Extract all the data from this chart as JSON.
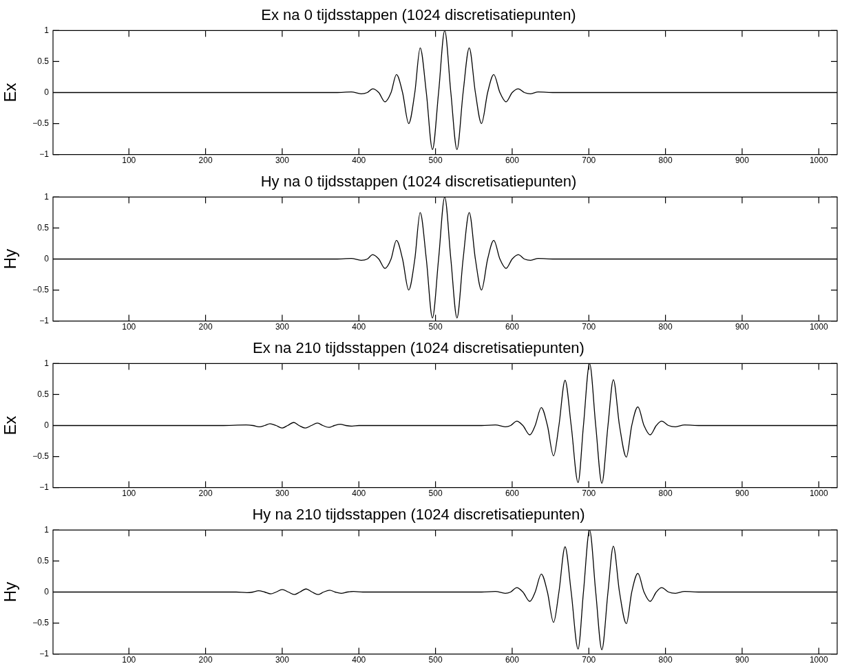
{
  "chart_data": [
    {
      "type": "line",
      "title": "Ex na 0 tijdsstappen (1024 discretisatiepunten)",
      "ylabel": "Ex",
      "xlim": [
        1,
        1024
      ],
      "xticks": [
        100,
        200,
        300,
        400,
        500,
        600,
        700,
        800,
        900,
        1000
      ],
      "ylim": [
        -1,
        1
      ],
      "yticks": [
        -1,
        -0.5,
        0,
        0.5,
        1
      ],
      "line_style": "solid",
      "series": [
        {
          "color": "#000000",
          "x": [
            1,
            370,
            390,
            403,
            411,
            418,
            426,
            434,
            442,
            449,
            457,
            465,
            473,
            480,
            488,
            496,
            504,
            512,
            520,
            528,
            536,
            544,
            552,
            560,
            568,
            576,
            584,
            592,
            600,
            608,
            616,
            624,
            634,
            655,
            1024
          ],
          "values": [
            0,
            0,
            0.01,
            -0.02,
            0,
            0.06,
            0,
            -0.15,
            0,
            0.29,
            0,
            -0.5,
            0,
            0.72,
            0,
            -0.92,
            0,
            1,
            0,
            -0.92,
            0,
            0.72,
            0,
            -0.5,
            0,
            0.29,
            0,
            -0.15,
            0,
            0.06,
            0,
            -0.02,
            0.01,
            0,
            0
          ]
        }
      ]
    },
    {
      "type": "line",
      "title": "Hy na 0 tijdsstappen (1024 discretisatiepunten)",
      "ylabel": "Hy",
      "xlim": [
        1,
        1024
      ],
      "xticks": [
        100,
        200,
        300,
        400,
        500,
        600,
        700,
        800,
        900,
        1000
      ],
      "ylim": [
        -1,
        1
      ],
      "yticks": [
        -1,
        -0.5,
        0,
        0.5,
        1
      ],
      "line_style": "solid",
      "series": [
        {
          "color": "#000000",
          "x": [
            1,
            370,
            390,
            403,
            411,
            418,
            426,
            434,
            442,
            449,
            457,
            465,
            473,
            480,
            488,
            496,
            504,
            512,
            520,
            528,
            536,
            544,
            552,
            560,
            568,
            576,
            584,
            592,
            600,
            608,
            616,
            624,
            634,
            655,
            1024
          ],
          "values": [
            0,
            0,
            0.01,
            -0.02,
            0,
            0.07,
            0,
            -0.15,
            0,
            0.3,
            0,
            -0.5,
            0,
            0.75,
            0,
            -0.95,
            0,
            1,
            0,
            -0.95,
            0,
            0.75,
            0,
            -0.5,
            0,
            0.3,
            0,
            -0.15,
            0,
            0.07,
            0,
            -0.02,
            0.01,
            0,
            0
          ]
        }
      ]
    },
    {
      "type": "line",
      "title": "Ex na 210 tijdsstappen (1024 discretisatiepunten)",
      "ylabel": "Ex",
      "xlim": [
        1,
        1024
      ],
      "xticks": [
        100,
        200,
        300,
        400,
        500,
        600,
        700,
        800,
        900,
        1000
      ],
      "ylim": [
        -1,
        1
      ],
      "yticks": [
        -1,
        -0.5,
        0,
        0.5,
        1
      ],
      "line_style": "solid",
      "series": [
        {
          "color": "#000000",
          "x": [
            1,
            220,
            253,
            262,
            270,
            277,
            284,
            292,
            300,
            307,
            315,
            322,
            330,
            338,
            346,
            353,
            361,
            368,
            376,
            383,
            391,
            400,
            560,
            578,
            591,
            598,
            606,
            614,
            623,
            630,
            638,
            646,
            654,
            661,
            669,
            677,
            686,
            693,
            701,
            709,
            717,
            725,
            732,
            740,
            749,
            756,
            764,
            772,
            780,
            788,
            795,
            804,
            813,
            825,
            845,
            1024
          ],
          "values": [
            0,
            0,
            0.01,
            0,
            -0.02,
            0,
            0.03,
            0,
            -0.04,
            0,
            0.05,
            0,
            -0.04,
            0,
            0.04,
            0,
            -0.03,
            0,
            0.02,
            0,
            -0.01,
            0,
            0,
            0.01,
            -0.02,
            0,
            0.07,
            0,
            -0.15,
            0,
            0.29,
            0,
            -0.49,
            0,
            0.73,
            0,
            -0.92,
            0,
            1,
            0,
            -0.93,
            0,
            0.74,
            0,
            -0.51,
            0,
            0.3,
            0,
            -0.15,
            0,
            0.07,
            0,
            -0.02,
            0.01,
            0,
            0
          ]
        }
      ]
    },
    {
      "type": "line",
      "title": "Hy na 210 tijdsstappen (1024 discretisatiepunten)",
      "ylabel": "Hy",
      "xlim": [
        1,
        1024
      ],
      "xticks": [
        100,
        200,
        300,
        400,
        500,
        600,
        700,
        800,
        900,
        1000
      ],
      "ylim": [
        -1,
        1
      ],
      "yticks": [
        -1,
        -0.5,
        0,
        0.5,
        1
      ],
      "line_style": "solid",
      "series": [
        {
          "color": "#000000",
          "x": [
            1,
            240,
            254,
            262,
            269,
            277,
            285,
            292,
            300,
            308,
            316,
            323,
            331,
            339,
            347,
            354,
            362,
            369,
            377,
            385,
            393,
            405,
            560,
            578,
            591,
            598,
            606,
            614,
            623,
            630,
            638,
            646,
            654,
            661,
            669,
            677,
            686,
            693,
            701,
            709,
            717,
            725,
            732,
            740,
            749,
            756,
            764,
            772,
            780,
            788,
            795,
            804,
            813,
            825,
            845,
            1024
          ],
          "values": [
            0,
            0,
            -0.01,
            0,
            0.02,
            0,
            -0.03,
            0,
            0.04,
            0,
            -0.04,
            0,
            0.05,
            0,
            -0.04,
            0,
            0.03,
            0,
            -0.02,
            0,
            0.01,
            0,
            0,
            0.01,
            -0.02,
            0,
            0.07,
            0,
            -0.15,
            0,
            0.29,
            0,
            -0.49,
            0,
            0.73,
            0,
            -0.92,
            0,
            1,
            0,
            -0.93,
            0,
            0.74,
            0,
            -0.51,
            0,
            0.3,
            0,
            -0.15,
            0,
            0.07,
            0,
            -0.02,
            0.01,
            0,
            0
          ]
        }
      ]
    }
  ]
}
